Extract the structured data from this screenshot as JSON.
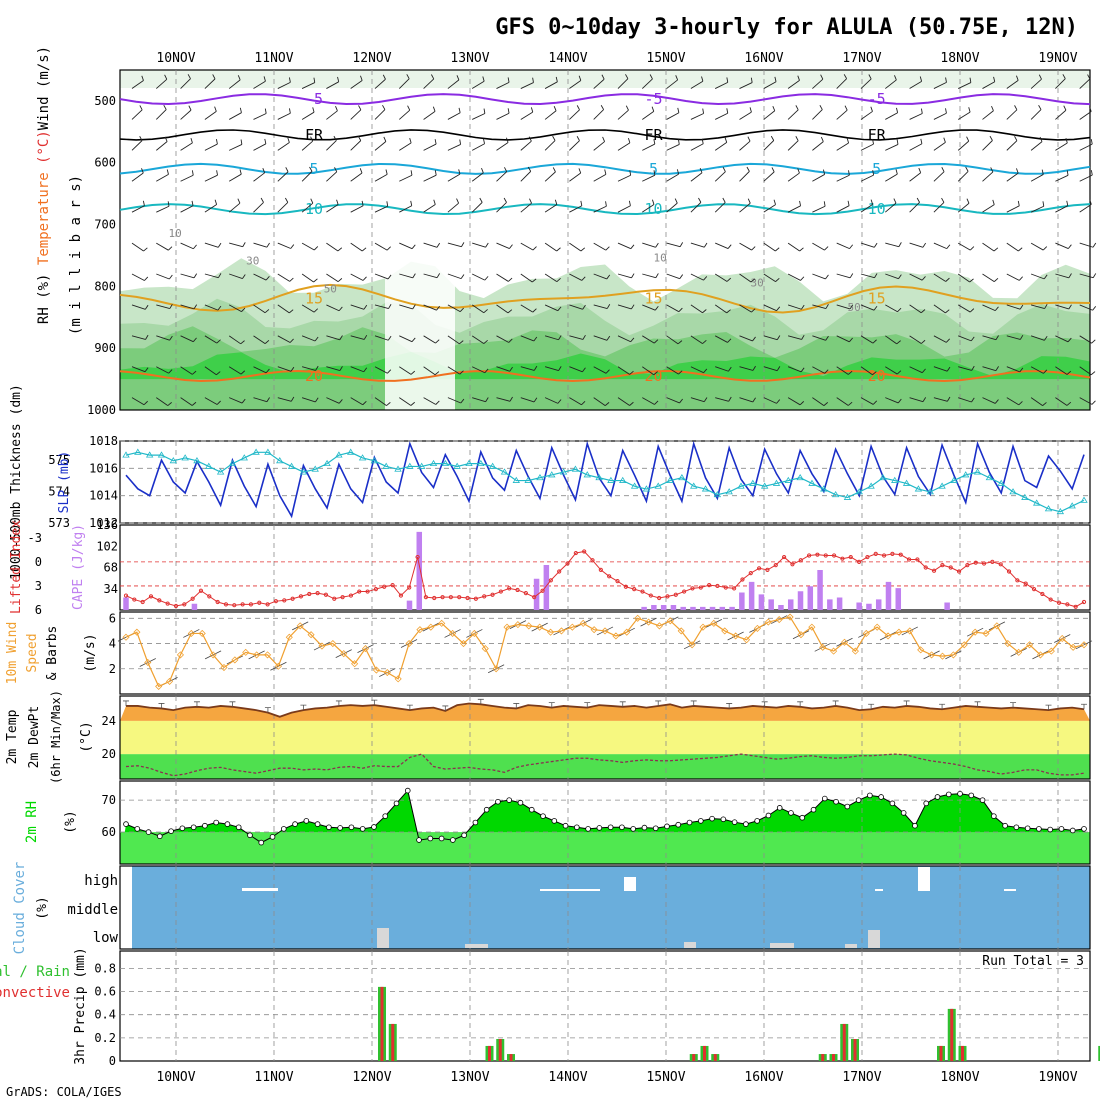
{
  "page": {
    "title": "GFS 0~10day 3-hourly for ALULA (50.75E, 12N)",
    "footer": "GrADS: COLA/IGES",
    "dates": [
      "10NOV",
      "11NOV",
      "12NOV",
      "13NOV",
      "14NOV",
      "15NOV",
      "16NOV",
      "17NOV",
      "18NOV",
      "19NOV"
    ]
  },
  "colors": {
    "rh_green": "#3fcf4a",
    "rh_light": "#c8e6c8",
    "temp_purple": "#8a2be2",
    "temp_cyan": "#1aa7d8",
    "temp_teal": "#18b8c0",
    "temp_orange15": "#e0a020",
    "temp_orange20": "#f07020",
    "slp_blue": "#1a2fc8",
    "thick_cyan": "#20b8c8",
    "cape_purple": "#c080f0",
    "li_red": "#e03030",
    "wind_orange": "#f0a030",
    "t2m_band": "#f5a640",
    "t2m_yellow": "#f6f880",
    "t2m_green": "#4fe04f",
    "rh2m_dark": "#00d800",
    "rh2m_light": "#50e850",
    "cloud_bg": "#6aaedc",
    "precip_green": "#30c030",
    "precip_red": "#e03030"
  },
  "chart_data": [
    {
      "type": "contour",
      "panel": "upper_air",
      "ylabel_parts": [
        "RH (%)",
        "Temperature (°C)",
        "Wind (m/s)"
      ],
      "ylabel2": "(m i l l i b a r s)",
      "y_ticks": [
        "500",
        "600",
        "700",
        "800",
        "900",
        "1000"
      ],
      "ylim": [
        450,
        1000
      ],
      "isotherms": [
        {
          "label": "-5",
          "level_mb": 497
        },
        {
          "label": "FR",
          "level_mb": 555
        },
        {
          "label": "5",
          "level_mb": 610
        },
        {
          "label": "10",
          "level_mb": 675
        },
        {
          "label": "15",
          "level_mb": 820
        },
        {
          "label": "20",
          "level_mb": 945
        }
      ],
      "rh_labels": [
        "10",
        "30",
        "50"
      ]
    },
    {
      "type": "line",
      "panel": "slp_thickness",
      "ylabel_left": "1000-500mb Thickness (dm)",
      "ylabel_right": "SLP (mb)",
      "left_ticks": [
        "573",
        "574",
        "575"
      ],
      "right_ticks": [
        "1012",
        "1014",
        "1016",
        "1018"
      ],
      "slp_range": [
        1012,
        1018
      ],
      "series": [
        {
          "name": "SLP",
          "axis": "right",
          "values": [
            1015.5,
            1014.5,
            1014,
            1016.6,
            1015,
            1014.2,
            1016.5,
            1015,
            1013.3,
            1016.6,
            1014.7,
            1013.2,
            1016.3,
            1014,
            1012.5,
            1016.2,
            1014.5,
            1013.1,
            1016.3,
            1014.5,
            1013.5,
            1016.8,
            1015,
            1014.2,
            1017.8,
            1015.7,
            1014.6,
            1017,
            1015.4,
            1013.6,
            1017.2,
            1015.3,
            1014.4,
            1017.3,
            1015.4,
            1013.8,
            1017.5,
            1015.5,
            1013.7,
            1017.8,
            1015.3,
            1014,
            1017.3,
            1015.5,
            1013.6,
            1017.6,
            1015.5,
            1013.6,
            1017.8,
            1015.3,
            1013.8,
            1017.5,
            1015.2,
            1014,
            1017.4,
            1015.6,
            1014.2,
            1017.3,
            1015.6,
            1014.3,
            1017.4,
            1015.6,
            1014,
            1017.6,
            1015.4,
            1014.1,
            1017.5,
            1015.4,
            1014.1,
            1017.7,
            1015.5,
            1013.5,
            1017.8,
            1015.7,
            1014.2,
            1017.6,
            1015.1,
            1014.6,
            1016.9,
            1015.8,
            1014.5,
            1017
          ]
        },
        {
          "name": "Thickness",
          "axis": "left",
          "values": [
            575.4,
            575.5,
            575.4,
            575.4,
            575.2,
            575.3,
            575.2,
            575,
            574.8,
            575.1,
            575.3,
            575.5,
            575.5,
            575.2,
            575,
            574.8,
            574.9,
            575.1,
            575.4,
            575.5,
            575.3,
            575.2,
            575,
            574.9,
            575,
            575,
            575.1,
            575.1,
            575,
            575.1,
            575.1,
            575,
            574.8,
            574.5,
            574.5,
            574.6,
            574.7,
            574.8,
            574.9,
            574.7,
            574.6,
            574.5,
            574.5,
            574.3,
            574.2,
            574.3,
            574.5,
            574.6,
            574.3,
            574.2,
            574,
            574.1,
            574.3,
            574.4,
            574.3,
            574.4,
            574.5,
            574.6,
            574.4,
            574.2,
            574,
            573.9,
            574.1,
            574.3,
            574.6,
            574.5,
            574.4,
            574.2,
            574.1,
            574.3,
            574.5,
            574.7,
            574.8,
            574.6,
            574.4,
            574.1,
            573.9,
            573.7,
            573.5,
            573.4,
            573.6,
            573.8
          ]
        }
      ]
    },
    {
      "type": "bar",
      "panel": "cape_li",
      "ylabel_left": "Lifted Index",
      "ylabel_right": "CAPE (J/kg)",
      "li_ticks": [
        "-3",
        "0",
        "3",
        "6"
      ],
      "cape_ticks": [
        "34",
        "68",
        "102",
        "136"
      ],
      "li_range": [
        6,
        -4.6
      ],
      "cape_range": [
        0,
        136
      ],
      "series": [
        {
          "name": "CAPE",
          "values": [
            20,
            0,
            0,
            0,
            0,
            0,
            0,
            10,
            0,
            0,
            0,
            0,
            0,
            0,
            0,
            0,
            0,
            0,
            0,
            0,
            0,
            0,
            0,
            0,
            0,
            0,
            0,
            0,
            0,
            0,
            0,
            0,
            0,
            0,
            0,
            0,
            0,
            0,
            0,
            0,
            0,
            15,
            0,
            125,
            0,
            0,
            0,
            0,
            0,
            0,
            0,
            0,
            0,
            0,
            0,
            0,
            0,
            0,
            0,
            0,
            0,
            0,
            0,
            0,
            0,
            0,
            0,
            0,
            0,
            0,
            0,
            0,
            0,
            0,
            0,
            0,
            0,
            0,
            0,
            0,
            0,
            0,
            0,
            0,
            0,
            0,
            0,
            0,
            0,
            0,
            0,
            0,
            0,
            0
          ]
        },
        {
          "name": "LI",
          "values": [
            4.2,
            4.7,
            5,
            4.3,
            4.8,
            5.2,
            5.5,
            5.3,
            4.6,
            3.6,
            4.3,
            5,
            5.3,
            5.4,
            5.3,
            5.3,
            5.1,
            5.3,
            4.9,
            4.8,
            4.6,
            4.3,
            4,
            3.9,
            4.1,
            4.6,
            4.4,
            4.2,
            3.7,
            3.7,
            3.4,
            3.1,
            2.9,
            4.2,
            3.2,
            -0.6,
            4.4,
            4.5,
            4.4,
            4.4,
            4.4,
            4.5,
            4.6,
            4.3,
            4.1,
            3.7,
            3.3,
            3.5,
            3.9,
            4.4,
            3.6,
            2.3,
            1.2,
            0.2,
            -1.1,
            -1.3,
            -0.2,
            1,
            1.8,
            2.4,
            3.1,
            3.4,
            3.7,
            4.2,
            4.5,
            4.3,
            4.1,
            3.7,
            3.3,
            3.2,
            2.9,
            3,
            3.2,
            3.3,
            2.2,
            1.4,
            0.8,
            1,
            0.4,
            -0.6,
            0.3,
            -0.2,
            -0.8,
            -0.9,
            -0.8,
            -0.8,
            -0.4,
            -0.6,
            0,
            -0.6,
            -1,
            -0.8,
            -1,
            -0.9,
            -0.3,
            -0.3,
            0.7,
            1.1,
            0.4,
            0.7,
            1.2,
            0.4,
            0.1,
            0.2,
            0,
            0.3,
            1.2,
            2.3,
            2.7,
            3.4,
            4,
            4.7,
            5.1,
            5.3,
            5.6,
            5
          ]
        }
      ],
      "cape_bars": [
        20,
        0,
        0,
        0,
        0,
        0,
        0,
        10,
        0,
        0,
        0,
        0,
        0,
        0,
        0,
        0,
        0,
        0,
        0,
        0,
        0,
        0,
        0,
        0,
        0,
        0,
        0,
        0,
        0,
        15,
        125,
        0,
        0,
        0,
        0,
        0,
        0,
        0,
        0,
        0,
        0,
        0,
        50,
        72,
        0,
        0,
        0,
        0,
        0,
        0,
        0,
        0,
        0,
        5,
        8,
        8,
        8,
        5,
        5,
        5,
        5,
        5,
        5,
        28,
        45,
        25,
        17,
        8,
        17,
        30,
        38,
        64,
        17,
        20,
        0,
        12,
        10,
        17,
        45,
        35,
        0,
        0,
        0,
        0,
        12,
        0,
        0,
        0,
        0,
        0,
        0,
        0,
        0,
        0,
        0,
        0,
        0,
        0,
        0
      ]
    },
    {
      "type": "line",
      "panel": "wind10m",
      "ylabel_parts": [
        "10m Wind",
        "Speed",
        "& Barbs"
      ],
      "yunit": "(m/s)",
      "y_ticks": [
        "2",
        "4",
        "6"
      ],
      "ylim": [
        0,
        6.5
      ],
      "series": [
        {
          "name": "Speed",
          "values": [
            4.5,
            4.9,
            2.5,
            0.6,
            1,
            3.1,
            4.8,
            4.8,
            3.1,
            2.1,
            2.7,
            3.3,
            3.1,
            3.1,
            2.2,
            4.5,
            5.4,
            4.7,
            3.8,
            4,
            3.2,
            2.4,
            3.6,
            1.9,
            1.7,
            1.2,
            4,
            5.1,
            5.3,
            5.6,
            4.8,
            4,
            4.8,
            3.6,
            2,
            5.3,
            5.5,
            5.4,
            5.3,
            4.9,
            5,
            5.3,
            5.6,
            5.1,
            5,
            4.6,
            4.9,
            6,
            5.7,
            5.4,
            5.8,
            5,
            3.9,
            5.3,
            5.6,
            5,
            4.6,
            4.3,
            5.2,
            5.7,
            5.9,
            6.1,
            4.7,
            5.3,
            3.7,
            3.4,
            4.1,
            3.4,
            4.8,
            5.3,
            4.6,
            4.9,
            5,
            3.5,
            3.1,
            3,
            3.1,
            3.9,
            4.9,
            4.8,
            5.4,
            4,
            3.3,
            3.9,
            3.1,
            3.4,
            4.4,
            3.7,
            3.9
          ]
        }
      ]
    },
    {
      "type": "area",
      "panel": "t2m",
      "ylabel_parts": [
        "2m Temp",
        "2m DewPt",
        "(6hr Min/Max)"
      ],
      "yunit": "(°C)",
      "y_ticks": [
        "20",
        "24"
      ],
      "ylim": [
        17,
        27
      ],
      "series": [
        {
          "name": "Temp",
          "values": [
            25.8,
            25.8,
            25.6,
            25.5,
            25.3,
            25.6,
            25.7,
            25.6,
            25.8,
            25.7,
            25.5,
            25.3,
            25,
            24.5,
            25,
            25.3,
            25.5,
            25.6,
            25.8,
            25.9,
            25.8,
            25.9,
            25.7,
            25.5,
            25.3,
            25.5,
            25.6,
            25.2,
            25.9,
            26.1,
            26,
            25.8,
            25.6,
            25.5,
            25.9,
            25.8,
            25.6,
            25.8,
            25.7,
            25.6,
            25.9,
            25.8,
            25.7,
            25.8,
            25.6,
            25.8,
            26,
            25.6,
            25.8,
            25.7,
            25.6,
            25.5,
            25.6,
            25.8,
            25.7,
            25.6,
            25.8,
            25.7,
            25.5,
            25.6,
            25.8,
            25.6,
            25.3,
            25.4,
            25.7,
            25.6,
            25.8,
            25.7,
            25.5,
            25.4,
            25.6,
            25.8,
            25.7,
            25.6,
            25.5,
            25.6,
            25.5,
            25.4,
            25.3,
            25.5,
            25.6,
            25.4
          ]
        },
        {
          "name": "DewPt",
          "values": [
            18.5,
            18.6,
            18.3,
            17.8,
            17.4,
            17.6,
            18,
            18.3,
            18.4,
            18.1,
            17.9,
            17.7,
            18,
            18.3,
            18.3,
            18.1,
            18.2,
            18.1,
            18.4,
            18.5,
            18.3,
            18.6,
            18.5,
            18.5,
            19.6,
            20,
            18.5,
            18.2,
            18.3,
            18.4,
            18.2,
            18.1,
            17.8,
            18.4,
            18.7,
            18.9,
            19.1,
            19.3,
            19.5,
            19.5,
            19.3,
            19.2,
            19,
            19.2,
            19.3,
            19.2,
            19.2,
            19.3,
            19.4,
            19.5,
            19.6,
            19.8,
            20,
            19.8,
            19.6,
            19.4,
            19.5,
            19.7,
            19.8,
            19.6,
            19.5,
            19.6,
            19.8,
            19.8,
            19.9,
            20,
            19.9,
            19.5,
            19.2,
            19,
            18.8,
            18.5,
            18.1,
            17.9,
            17.6,
            17.8,
            18.1,
            18.1,
            17.7,
            17.5,
            17.5,
            17.7
          ]
        }
      ]
    },
    {
      "type": "area",
      "panel": "rh2m",
      "ylabel": "2m RH",
      "yunit": "(%)",
      "y_ticks": [
        "60",
        "70"
      ],
      "ylim": [
        50,
        76
      ],
      "series": [
        {
          "name": "RH",
          "values": [
            62.5,
            61,
            60,
            58.7,
            60.3,
            61.2,
            61.5,
            62,
            63,
            62.5,
            61.5,
            59,
            56.7,
            58.5,
            61,
            62.5,
            63.5,
            62.5,
            61.5,
            61.3,
            61.5,
            61,
            61.6,
            65,
            69,
            73,
            57.5,
            58,
            58,
            57.5,
            59,
            63,
            67,
            69.5,
            70,
            69.2,
            67,
            65,
            63.5,
            62,
            61.5,
            61,
            61.3,
            61.5,
            61.5,
            61,
            61.4,
            61.2,
            61.8,
            62.3,
            63,
            63.5,
            64.2,
            64,
            63.1,
            62.5,
            63.5,
            65.2,
            67.6,
            66,
            64.5,
            67,
            70.5,
            69.5,
            68,
            70,
            71.5,
            71,
            69,
            66,
            62,
            69,
            71,
            71.8,
            72,
            71.5,
            70,
            65,
            62,
            61.5,
            61.2,
            61,
            60.8,
            61,
            60.5,
            61
          ]
        }
      ]
    },
    {
      "type": "bar",
      "panel": "cloud",
      "ylabel": "Cloud Cover",
      "yunit": "(%)",
      "levels": [
        "high",
        "middle",
        "low"
      ]
    },
    {
      "type": "bar",
      "panel": "precip",
      "ylabel_parts": [
        "Total / Rain",
        "Convective"
      ],
      "ylabel_y": "3hr Precip (mm)",
      "y_ticks": [
        "0",
        "0.2",
        "0.4",
        "0.6",
        "0.8"
      ],
      "ylim": [
        0,
        0.95
      ],
      "run_total": "Run Total = 3",
      "series": [
        {
          "name": "Total",
          "values": [
            0.64,
            0.32,
            0,
            0,
            0,
            0,
            0,
            0,
            0,
            0,
            0.13,
            0.19,
            0.06,
            0,
            0,
            0,
            0,
            0,
            0,
            0,
            0,
            0,
            0,
            0,
            0,
            0,
            0,
            0,
            0,
            0.06,
            0.13,
            0.06,
            0,
            0,
            0,
            0,
            0,
            0,
            0,
            0,
            0,
            0.06,
            0.06,
            0.32,
            0.19,
            0,
            0,
            0,
            0,
            0,
            0,
            0,
            0.13,
            0.45,
            0.13,
            0,
            0,
            0,
            0,
            0,
            0,
            0,
            0,
            0,
            0,
            0,
            0,
            0.13
          ]
        }
      ]
    }
  ]
}
